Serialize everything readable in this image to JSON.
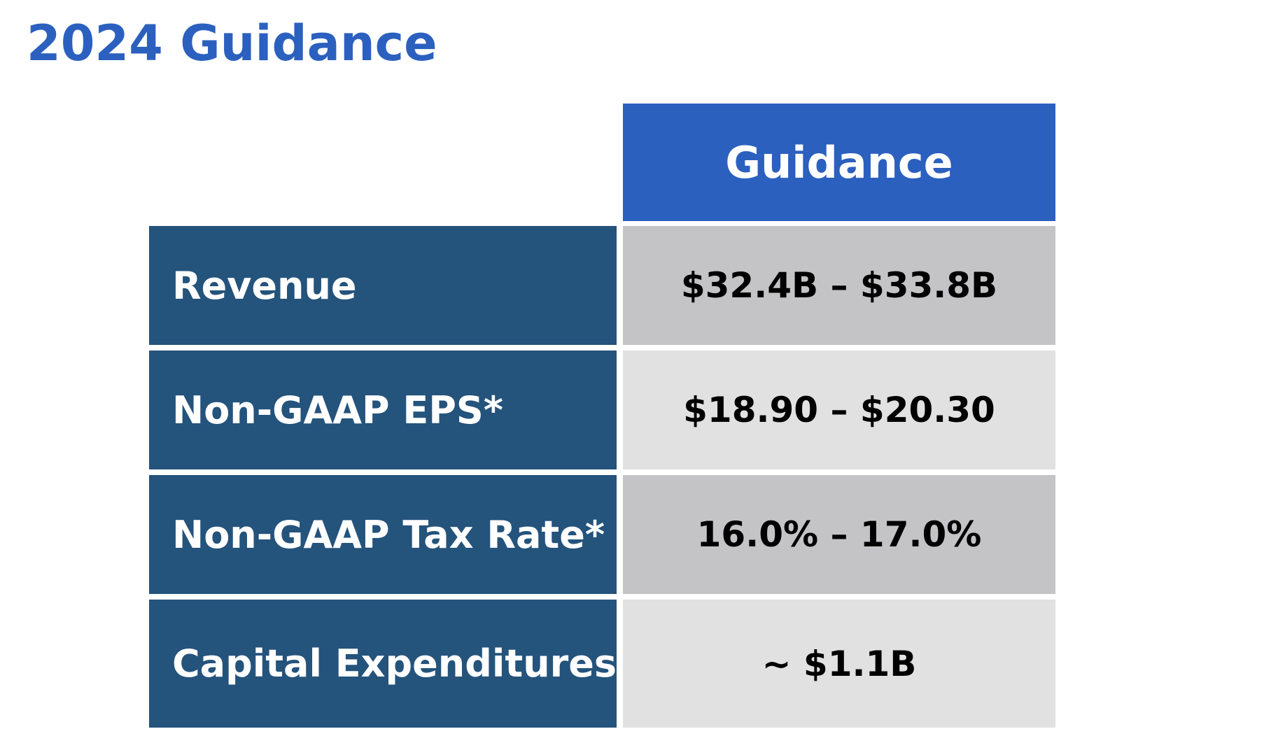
{
  "title": "2024 Guidance",
  "table": {
    "column_header": "Guidance",
    "rows": [
      {
        "label": "Revenue",
        "value": "$32.4B – $33.8B"
      },
      {
        "label": "Non-GAAP EPS*",
        "value": "$18.90 – $20.30"
      },
      {
        "label": "Non-GAAP Tax Rate*",
        "value": "16.0% – 17.0%"
      },
      {
        "label": "Capital Expenditures",
        "value": "~ $1.1B"
      }
    ]
  },
  "colors": {
    "title": "#2b60bf",
    "header_bg": "#2b60bf",
    "label_bg": "#24537c",
    "value_bg_dark": "#c4c4c6",
    "value_bg_light": "#e1e1e1"
  }
}
